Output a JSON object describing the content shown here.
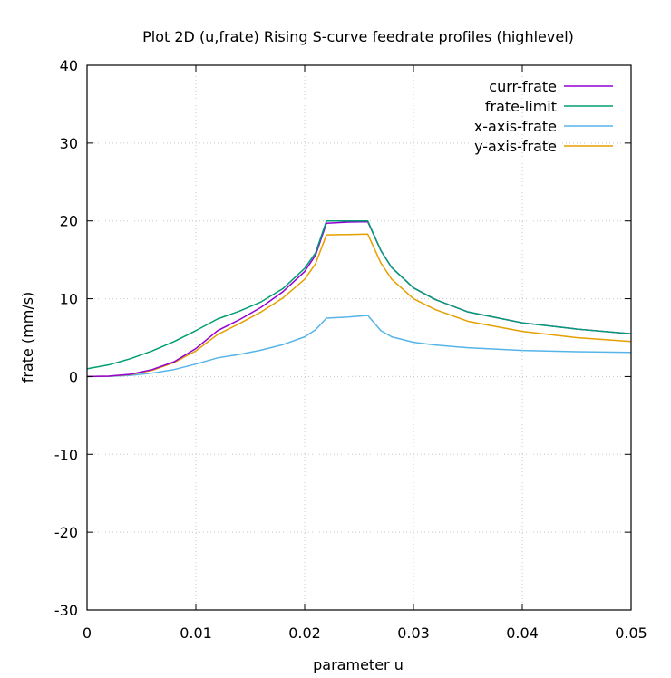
{
  "chart_data": {
    "type": "line",
    "title": "Plot 2D (u,frate) Rising S-curve feedrate profiles (highlevel)",
    "xlabel": "parameter u",
    "ylabel": "frate (mm/s)",
    "xlim": [
      0,
      0.05
    ],
    "ylim": [
      -30,
      40
    ],
    "xticks": [
      0,
      0.01,
      0.02,
      0.03,
      0.04,
      0.05
    ],
    "xtick_labels": [
      "0",
      "0.01",
      "0.02",
      "0.03",
      "0.04",
      "0.05"
    ],
    "yticks": [
      -30,
      -20,
      -10,
      0,
      10,
      20,
      30,
      40
    ],
    "ytick_labels": [
      "-30",
      "-20",
      "-10",
      "0",
      "10",
      "20",
      "30",
      "40"
    ],
    "grid": true,
    "legend_position": "top-right",
    "series": [
      {
        "name": "curr-frate",
        "color": "#9400d3",
        "points": [
          [
            0,
            0
          ],
          [
            0.002,
            0.05
          ],
          [
            0.004,
            0.3
          ],
          [
            0.006,
            0.9
          ],
          [
            0.008,
            1.9
          ],
          [
            0.01,
            3.6
          ],
          [
            0.012,
            5.9
          ],
          [
            0.014,
            7.3
          ],
          [
            0.016,
            8.9
          ],
          [
            0.018,
            10.9
          ],
          [
            0.02,
            13.5
          ],
          [
            0.021,
            15.6
          ],
          [
            0.022,
            19.7
          ],
          [
            0.024,
            19.85
          ],
          [
            0.0258,
            19.9
          ],
          [
            0.027,
            16.2
          ],
          [
            0.028,
            14.0
          ],
          [
            0.03,
            11.4
          ],
          [
            0.032,
            9.9
          ],
          [
            0.035,
            8.3
          ],
          [
            0.04,
            6.9
          ],
          [
            0.045,
            6.1
          ],
          [
            0.05,
            5.5
          ]
        ]
      },
      {
        "name": "frate-limit",
        "color": "#009e73",
        "points": [
          [
            0,
            1.0
          ],
          [
            0.002,
            1.5
          ],
          [
            0.004,
            2.3
          ],
          [
            0.006,
            3.3
          ],
          [
            0.008,
            4.5
          ],
          [
            0.01,
            5.9
          ],
          [
            0.012,
            7.4
          ],
          [
            0.014,
            8.4
          ],
          [
            0.016,
            9.6
          ],
          [
            0.018,
            11.3
          ],
          [
            0.02,
            13.9
          ],
          [
            0.021,
            15.9
          ],
          [
            0.022,
            20.0
          ],
          [
            0.024,
            20.0
          ],
          [
            0.0258,
            20.0
          ],
          [
            0.027,
            16.2
          ],
          [
            0.028,
            14.0
          ],
          [
            0.03,
            11.4
          ],
          [
            0.032,
            9.9
          ],
          [
            0.035,
            8.3
          ],
          [
            0.04,
            6.9
          ],
          [
            0.045,
            6.1
          ],
          [
            0.05,
            5.5
          ]
        ]
      },
      {
        "name": "x-axis-frate",
        "color": "#56b4e9",
        "points": [
          [
            0,
            0
          ],
          [
            0.002,
            0.02
          ],
          [
            0.004,
            0.15
          ],
          [
            0.006,
            0.45
          ],
          [
            0.008,
            0.9
          ],
          [
            0.01,
            1.6
          ],
          [
            0.012,
            2.4
          ],
          [
            0.014,
            2.85
          ],
          [
            0.016,
            3.4
          ],
          [
            0.018,
            4.1
          ],
          [
            0.02,
            5.1
          ],
          [
            0.021,
            6.0
          ],
          [
            0.022,
            7.5
          ],
          [
            0.024,
            7.65
          ],
          [
            0.0258,
            7.85
          ],
          [
            0.027,
            5.9
          ],
          [
            0.028,
            5.1
          ],
          [
            0.03,
            4.4
          ],
          [
            0.032,
            4.05
          ],
          [
            0.035,
            3.7
          ],
          [
            0.04,
            3.35
          ],
          [
            0.045,
            3.2
          ],
          [
            0.05,
            3.1
          ]
        ]
      },
      {
        "name": "y-axis-frate",
        "color": "#e69f00",
        "points": [
          [
            0,
            0
          ],
          [
            0.002,
            0.05
          ],
          [
            0.004,
            0.25
          ],
          [
            0.006,
            0.8
          ],
          [
            0.008,
            1.8
          ],
          [
            0.01,
            3.3
          ],
          [
            0.012,
            5.4
          ],
          [
            0.014,
            6.8
          ],
          [
            0.016,
            8.3
          ],
          [
            0.018,
            10.1
          ],
          [
            0.02,
            12.5
          ],
          [
            0.021,
            14.5
          ],
          [
            0.022,
            18.2
          ],
          [
            0.024,
            18.25
          ],
          [
            0.0258,
            18.3
          ],
          [
            0.027,
            14.6
          ],
          [
            0.028,
            12.5
          ],
          [
            0.03,
            10.0
          ],
          [
            0.032,
            8.6
          ],
          [
            0.035,
            7.1
          ],
          [
            0.04,
            5.8
          ],
          [
            0.045,
            5.0
          ],
          [
            0.05,
            4.5
          ]
        ]
      }
    ]
  }
}
